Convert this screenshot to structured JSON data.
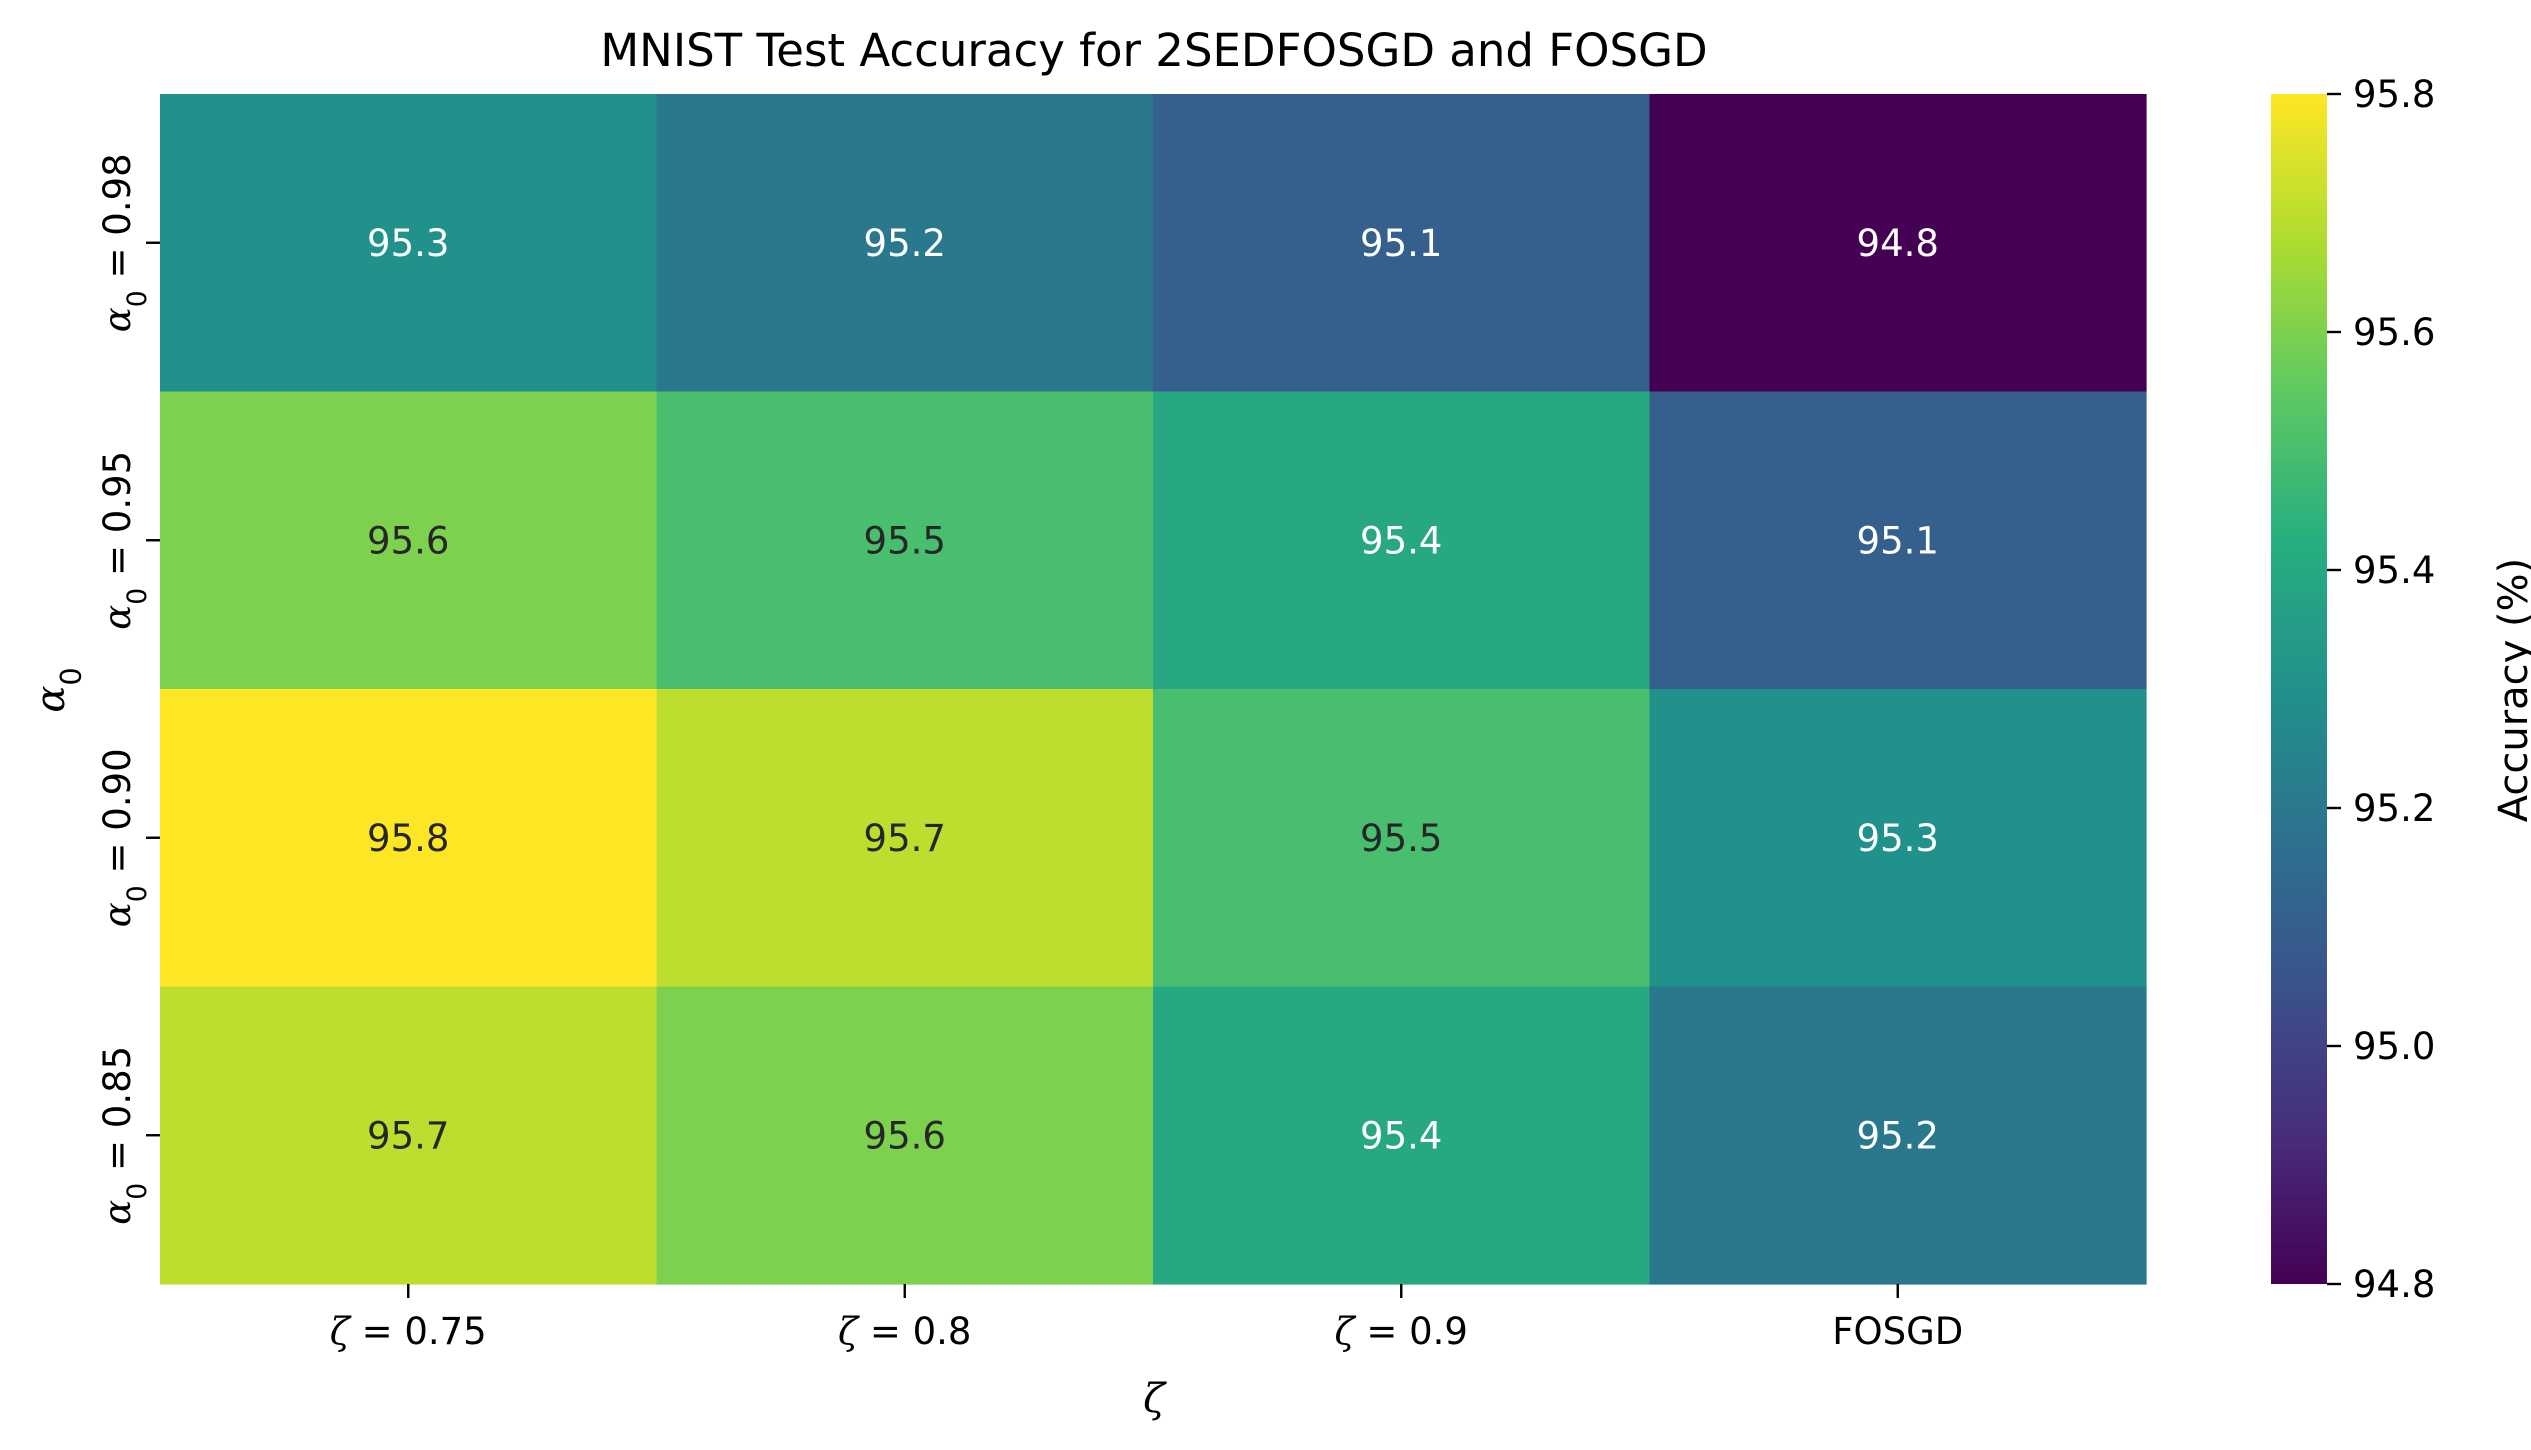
{
  "chart_data": {
    "type": "heatmap",
    "title": "MNIST Test Accuracy for 2SEDFOSGD and FOSGD",
    "xlabel": "ζ",
    "ylabel": "α0",
    "x_categories": [
      "ζ = 0.75",
      "ζ = 0.8",
      "ζ = 0.9",
      "FOSGD"
    ],
    "y_categories": [
      "α0 = 0.98",
      "α0 = 0.95",
      "α0 = 0.90",
      "α0 = 0.85"
    ],
    "values": [
      [
        95.3,
        95.2,
        95.1,
        94.8
      ],
      [
        95.6,
        95.5,
        95.4,
        95.1
      ],
      [
        95.8,
        95.7,
        95.5,
        95.3
      ],
      [
        95.7,
        95.6,
        95.4,
        95.2
      ]
    ],
    "cell_labels": [
      [
        "95.3",
        "95.2",
        "95.1",
        "94.8"
      ],
      [
        "95.6",
        "95.5",
        "95.4",
        "95.1"
      ],
      [
        "95.8",
        "95.7",
        "95.5",
        "95.3"
      ],
      [
        "95.7",
        "95.6",
        "95.4",
        "95.2"
      ]
    ],
    "colormap": "viridis",
    "vmin": 94.8,
    "vmax": 95.8,
    "colorbar": {
      "label": "Accuracy (%)",
      "ticks": [
        94.8,
        95.0,
        95.2,
        95.4,
        95.6,
        95.8
      ],
      "tick_labels": [
        "94.8",
        "95.0",
        "95.2",
        "95.4",
        "95.6",
        "95.8"
      ]
    },
    "colors": {
      "dark_text": "#262626",
      "light_text": "#ffffff"
    }
  }
}
